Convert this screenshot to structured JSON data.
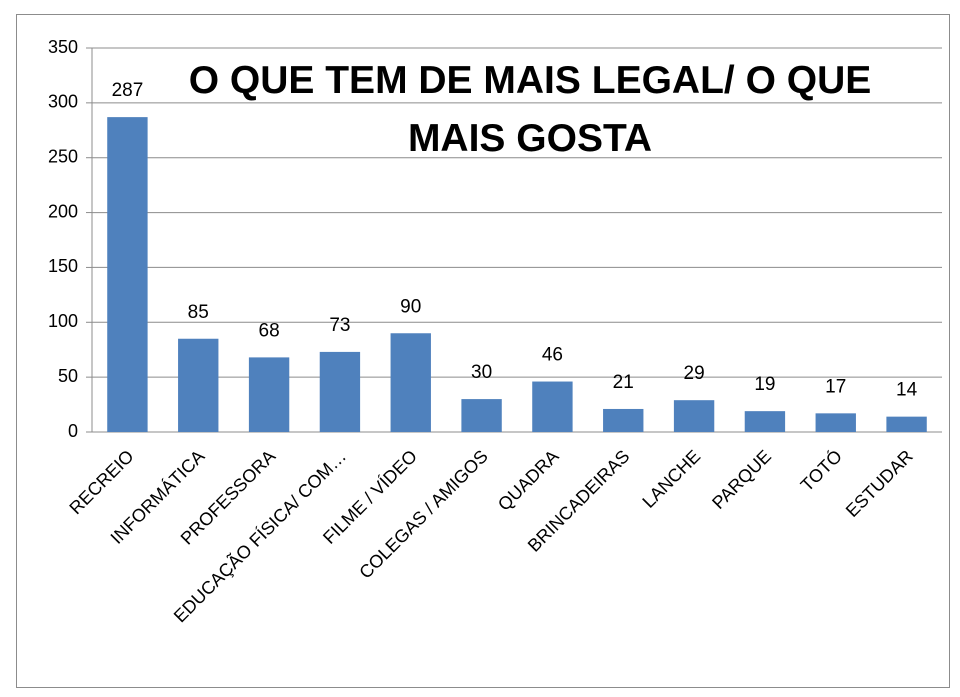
{
  "chart_data": {
    "type": "bar",
    "title": "O QUE TEM DE MAIS LEGAL/ O QUE MAIS GOSTA",
    "categories": [
      "RECREIO",
      "INFORMÁTICA",
      "PROFESSORA",
      "EDUCAÇÃO FÍSICA/ COM…",
      "FILME / VÍDEO",
      "COLEGAS / AMIGOS",
      "QUADRA",
      "BRINCADEIRAS",
      "LANCHE",
      "PARQUE",
      "TOTÓ",
      "ESTUDAR"
    ],
    "values": [
      287,
      85,
      68,
      73,
      90,
      30,
      46,
      21,
      29,
      19,
      17,
      14
    ],
    "color": "#4f81bd",
    "ylim": [
      0,
      350
    ],
    "yticks": [
      0,
      50,
      100,
      150,
      200,
      250,
      300,
      350
    ],
    "grid": true
  }
}
